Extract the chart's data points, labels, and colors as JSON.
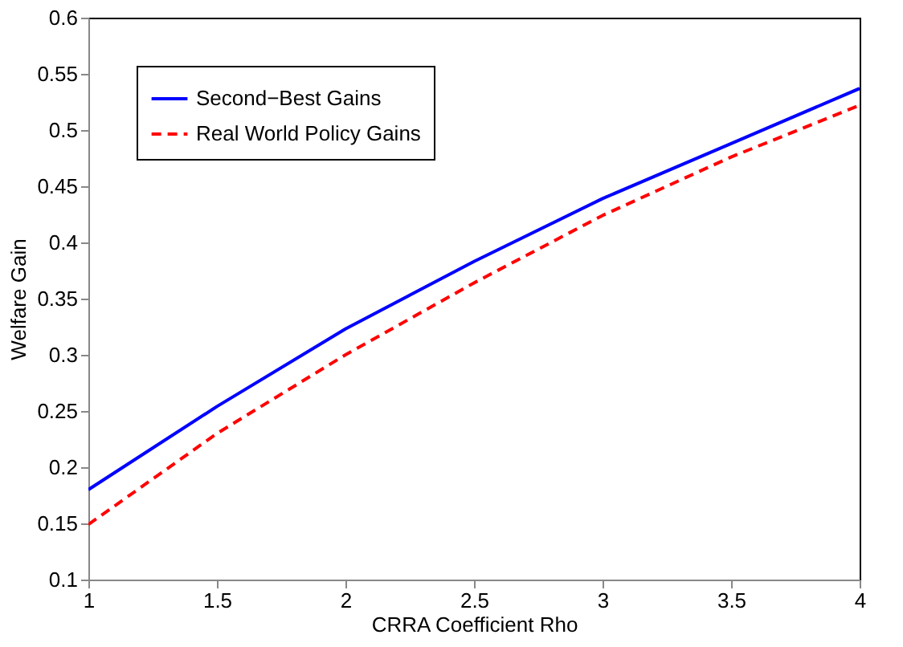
{
  "chart_data": {
    "type": "line",
    "xlabel": "CRRA Coefficient Rho",
    "ylabel": "Welfare Gain",
    "x": [
      1,
      1.5,
      2,
      2.5,
      3,
      3.5,
      4
    ],
    "series": [
      {
        "name": "Second−Best Gains",
        "color": "#0000ff",
        "line_style": "solid",
        "values": [
          0.18,
          0.254,
          0.323,
          0.383,
          0.439,
          0.488,
          0.537
        ]
      },
      {
        "name": "Real World Policy Gains",
        "color": "#ff0000",
        "line_style": "dashed",
        "values": [
          0.149,
          0.23,
          0.3,
          0.364,
          0.424,
          0.476,
          0.522
        ]
      }
    ],
    "xlim": [
      1,
      4
    ],
    "xticks": [
      1,
      1.5,
      2,
      2.5,
      3,
      3.5,
      4
    ],
    "ylim": [
      0.1,
      0.6
    ],
    "yticks": [
      0.1,
      0.15,
      0.2,
      0.25,
      0.3,
      0.35,
      0.4,
      0.45,
      0.5,
      0.55,
      0.6
    ],
    "grid": false,
    "legend": "top left",
    "marker": "none"
  }
}
